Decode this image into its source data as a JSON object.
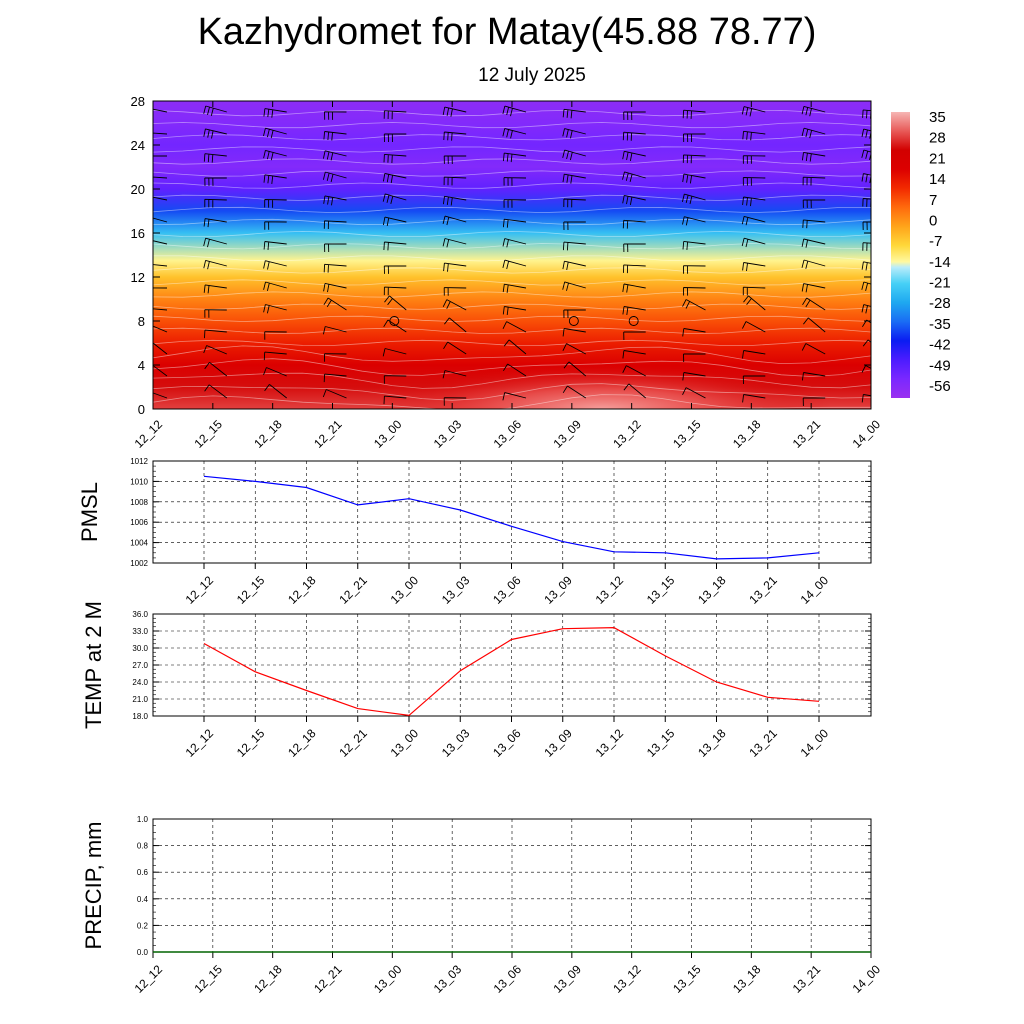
{
  "title": "Kazhydromet for Matay(45.88 78.77)",
  "subtitle": "12 July 2025",
  "times": [
    "12_12",
    "12_15",
    "12_18",
    "12_21",
    "13_00",
    "13_03",
    "13_06",
    "13_09",
    "13_12",
    "13_15",
    "13_18",
    "13_21",
    "14_00"
  ],
  "colors": {
    "pmsl_line": "#0000ff",
    "temp_line": "#ff0000",
    "precip_line": "#006400",
    "grid": "#000000"
  },
  "chart_data": [
    {
      "type": "heatmap",
      "name": "cross-section",
      "y_ticks": [
        0,
        4,
        8,
        12,
        16,
        20,
        24,
        28
      ],
      "ylim": [
        0,
        28
      ],
      "colorbar": {
        "labels": [
          "35",
          "28",
          "21",
          "14",
          "7",
          "0",
          "-7",
          "-14",
          "-21",
          "-28",
          "-35",
          "-42",
          "-49",
          "-56"
        ],
        "range": [
          -63,
          42
        ]
      },
      "temperature_profile": [
        {
          "level": 0,
          "value": 33
        },
        {
          "level": 2,
          "value": 29
        },
        {
          "level": 4,
          "value": 22
        },
        {
          "level": 6,
          "value": 16
        },
        {
          "level": 8,
          "value": 10
        },
        {
          "level": 10,
          "value": 4
        },
        {
          "level": 12,
          "value": -4
        },
        {
          "level": 13.5,
          "value": -12
        },
        {
          "level": 16,
          "value": -24
        },
        {
          "level": 18,
          "value": -38
        },
        {
          "level": 20,
          "value": -52
        },
        {
          "level": 22,
          "value": -58
        },
        {
          "level": 24,
          "value": -55
        },
        {
          "level": 26,
          "value": -58
        },
        {
          "level": 28,
          "value": -60
        }
      ],
      "surface_max": {
        "time_index": 7.5,
        "value": 41
      },
      "wind_columns": 13,
      "wind_levels": [
        1,
        3,
        5,
        7,
        9,
        11,
        13,
        15,
        17,
        19,
        21,
        23,
        25,
        27
      ],
      "calm_markers": [
        {
          "time": "13_00",
          "level": 8
        },
        {
          "time": "13_09",
          "level": 8
        },
        {
          "time": "13_12",
          "level": 8
        }
      ]
    },
    {
      "type": "line",
      "ylabel": "PMSL",
      "x": [
        "12_12",
        "12_15",
        "12_18",
        "12_21",
        "13_00",
        "13_03",
        "13_06",
        "13_09",
        "13_12",
        "13_15",
        "13_18",
        "13_21",
        "14_00"
      ],
      "ylim": [
        1002,
        1012
      ],
      "y_ticks": [
        "1002",
        "1004",
        "1006",
        "1008",
        "1010",
        "1012"
      ],
      "series": [
        {
          "values": [
            1010.5,
            1010.0,
            1009.4,
            1007.7,
            1008.3,
            1007.2,
            1005.6,
            1004.1,
            1003.1,
            1003.0,
            1002.4,
            1002.5,
            1003.0
          ]
        }
      ]
    },
    {
      "type": "line",
      "ylabel": "TEMP at 2 M",
      "x": [
        "12_12",
        "12_15",
        "12_18",
        "12_21",
        "13_00",
        "13_03",
        "13_06",
        "13_09",
        "13_12",
        "13_15",
        "13_18",
        "13_21",
        "14_00"
      ],
      "ylim": [
        18,
        36
      ],
      "y_ticks": [
        "18.0",
        "21.0",
        "24.0",
        "27.0",
        "30.0",
        "33.0",
        "36.0"
      ],
      "series": [
        {
          "values": [
            30.8,
            25.8,
            22.5,
            19.3,
            18.1,
            26.0,
            31.5,
            33.4,
            33.6,
            28.6,
            24.0,
            21.3,
            20.6
          ]
        }
      ]
    },
    {
      "type": "line",
      "ylabel": "PRECIP, mm",
      "x": [
        "12_12",
        "12_15",
        "12_18",
        "12_21",
        "13_00",
        "13_03",
        "13_06",
        "13_09",
        "13_12",
        "13_15",
        "13_18",
        "13_21",
        "14_00"
      ],
      "ylim": [
        0,
        1
      ],
      "y_ticks": [
        "0.0",
        "0.2",
        "0.4",
        "0.6",
        "0.8",
        "1.0"
      ],
      "series": [
        {
          "values": [
            0,
            0,
            0,
            0,
            0,
            0,
            0,
            0,
            0,
            0,
            0,
            0,
            0
          ]
        }
      ]
    }
  ]
}
